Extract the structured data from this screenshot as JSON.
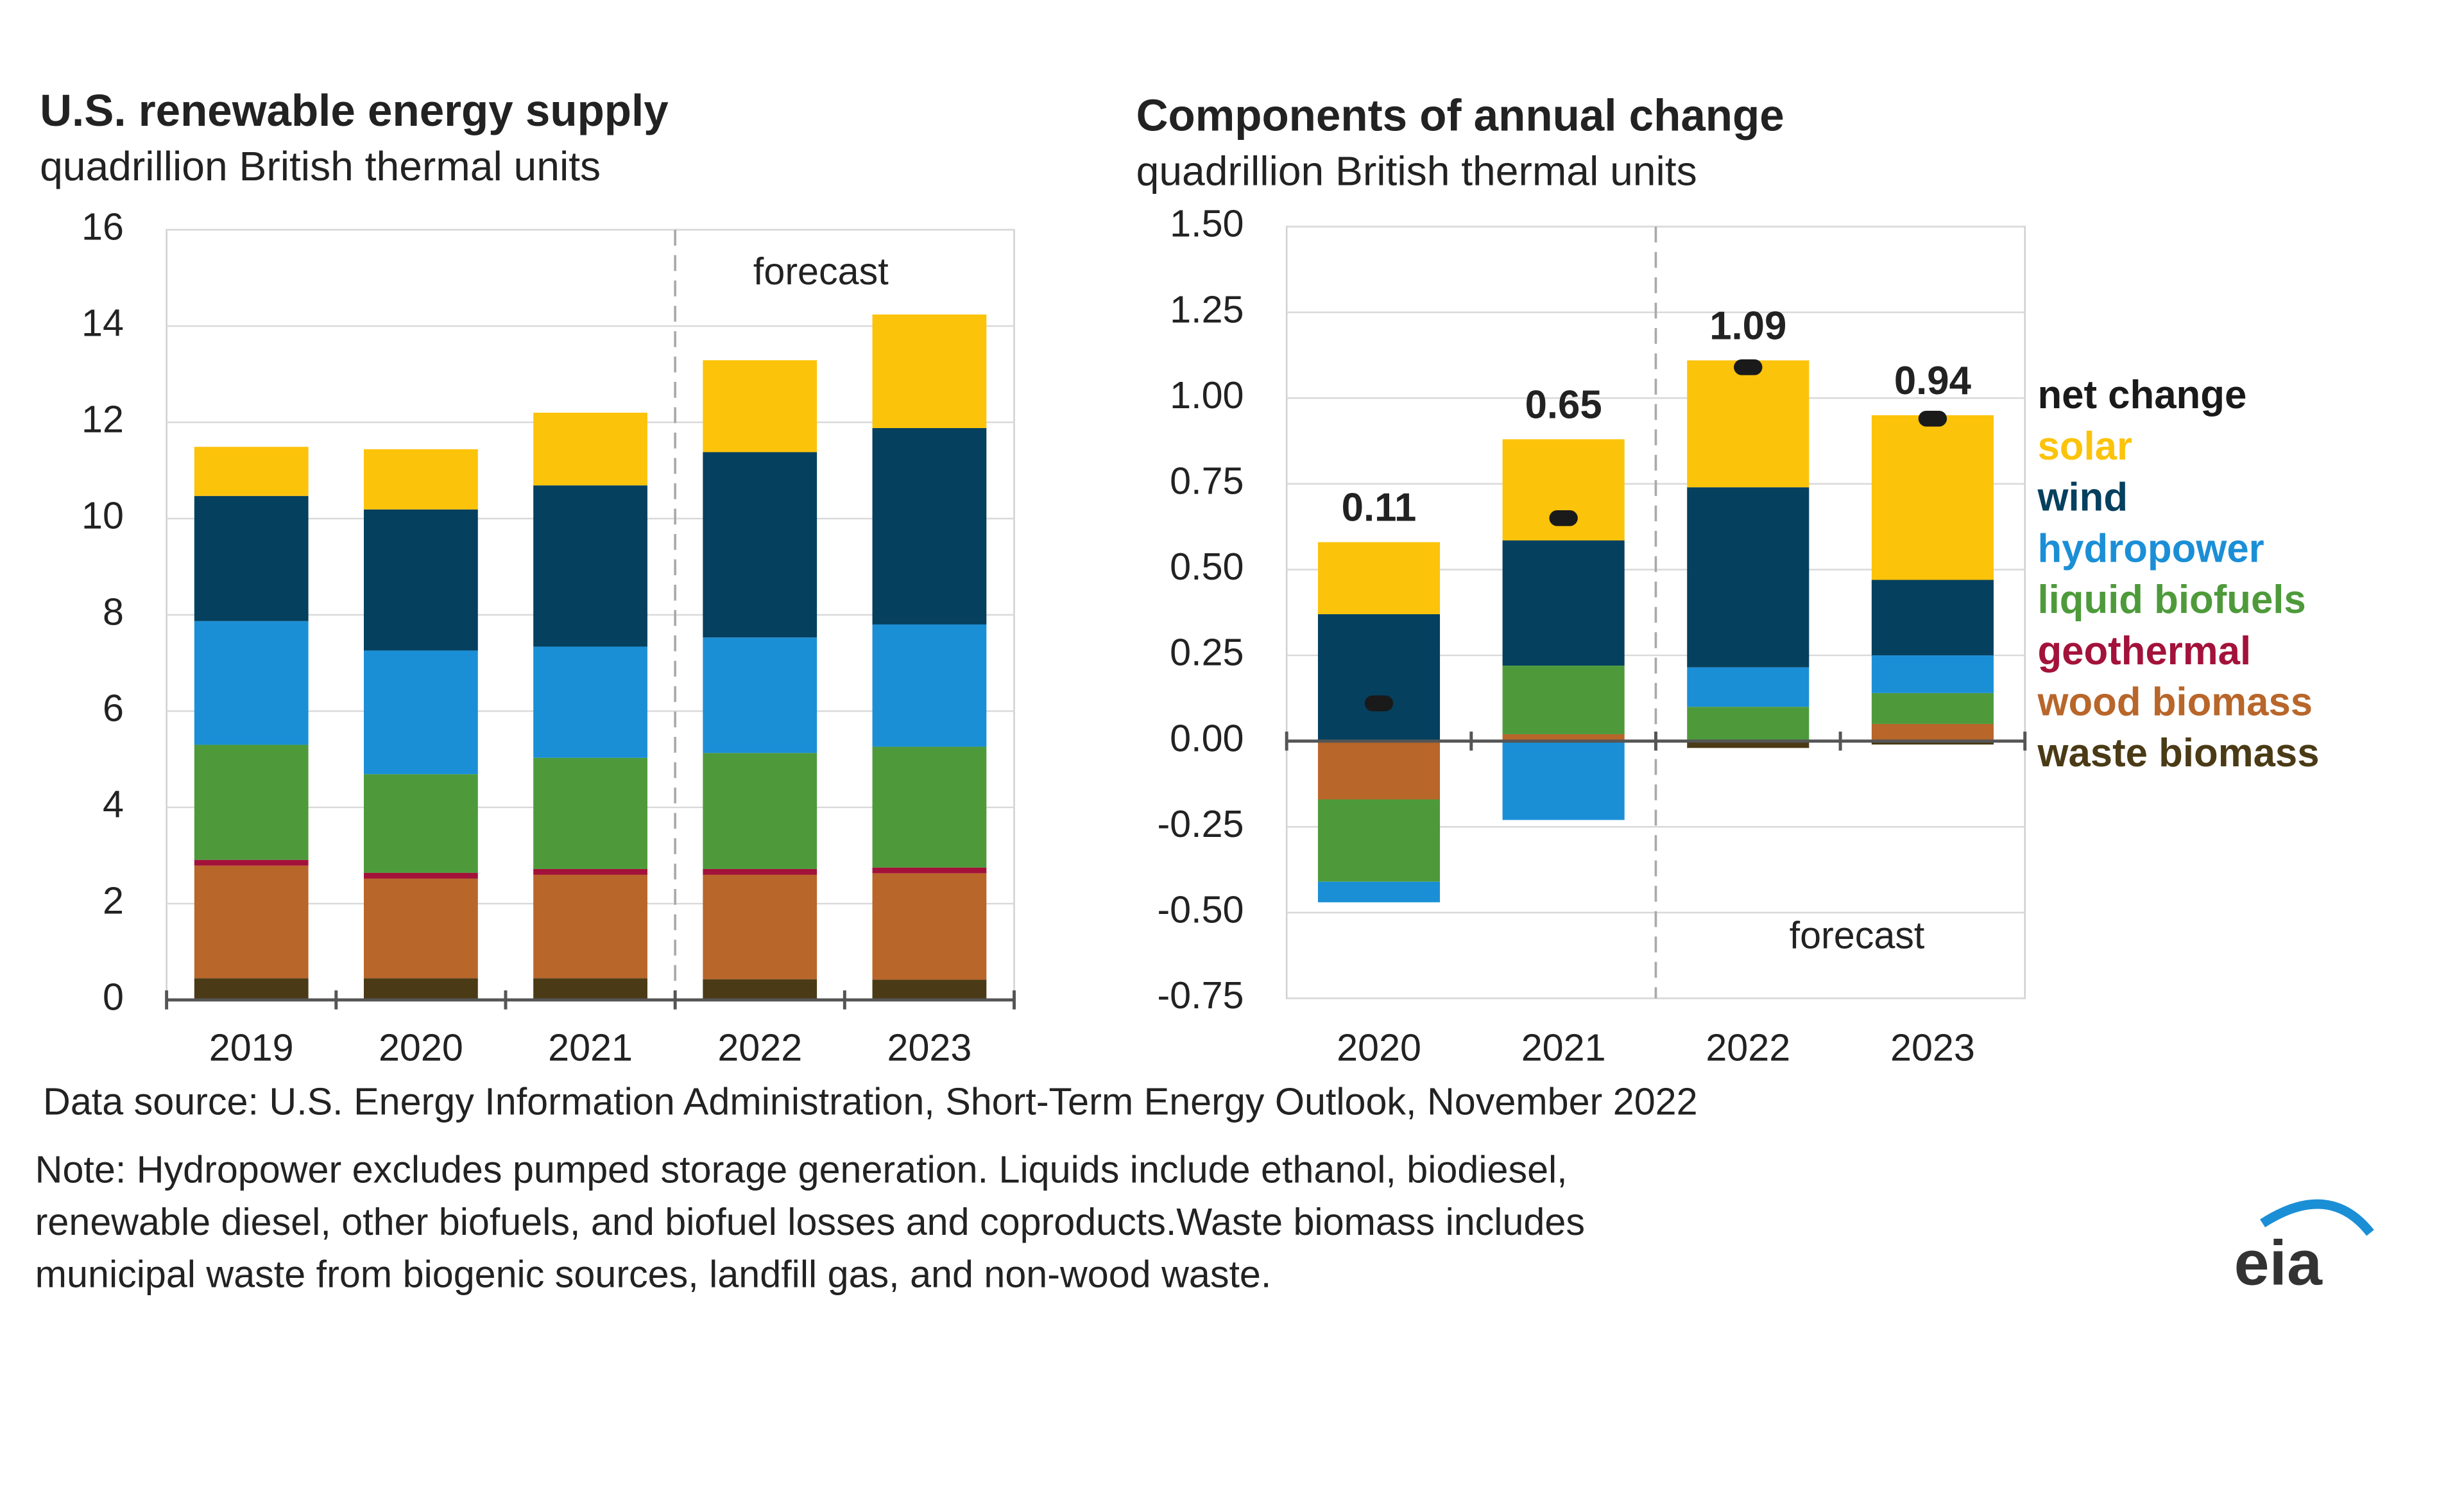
{
  "chart_data": [
    {
      "type": "bar",
      "stacked": true,
      "title": "U.S. renewable energy supply",
      "subtitle": "quadrillion British thermal units",
      "annotation": "forecast",
      "categories": [
        "2019",
        "2020",
        "2021",
        "2022",
        "2023"
      ],
      "series": [
        {
          "name": "waste biomass",
          "color": "#4a3b16",
          "values": [
            0.45,
            0.45,
            0.45,
            0.43,
            0.42
          ]
        },
        {
          "name": "wood biomass",
          "color": "#b8662a",
          "values": [
            2.34,
            2.07,
            2.15,
            2.17,
            2.21
          ]
        },
        {
          "name": "geothermal",
          "color": "#a3123a",
          "values": [
            0.12,
            0.12,
            0.12,
            0.12,
            0.12
          ]
        },
        {
          "name": "liquid biofuels",
          "color": "#4e9a3b",
          "values": [
            2.39,
            2.05,
            2.31,
            2.41,
            2.51
          ]
        },
        {
          "name": "hydropower",
          "color": "#1b8fd6",
          "values": [
            2.57,
            2.57,
            2.31,
            2.4,
            2.54
          ]
        },
        {
          "name": "wind",
          "color": "#05405f",
          "values": [
            2.6,
            2.93,
            3.35,
            3.85,
            4.08
          ]
        },
        {
          "name": "solar",
          "color": "#fcc30b",
          "values": [
            1.02,
            1.25,
            1.51,
            1.91,
            2.36
          ]
        }
      ],
      "ylim": [
        0,
        16
      ],
      "yticks": [
        0,
        2,
        4,
        6,
        8,
        10,
        12,
        14,
        16
      ],
      "grid": true
    },
    {
      "type": "bar",
      "stacked": true,
      "title": "Components of annual change",
      "subtitle": "quadrillion British thermal units",
      "annotation": "forecast",
      "categories": [
        "2020",
        "2021",
        "2022",
        "2023"
      ],
      "series": [
        {
          "name": "waste biomass",
          "color": "#4a3b16",
          "values": [
            0,
            0,
            -0.02,
            -0.01
          ]
        },
        {
          "name": "wood biomass",
          "color": "#b8662a",
          "values": [
            -0.17,
            0.02,
            0,
            0.05
          ]
        },
        {
          "name": "geothermal",
          "color": "#a3123a",
          "values": [
            0,
            0,
            0,
            0
          ]
        },
        {
          "name": "liquid biofuels",
          "color": "#4e9a3b",
          "values": [
            -0.24,
            0.2,
            0.1,
            0.09
          ]
        },
        {
          "name": "hydropower",
          "color": "#1b8fd6",
          "values": [
            -0.06,
            -0.23,
            0.115,
            0.11
          ]
        },
        {
          "name": "wind",
          "color": "#05405f",
          "values": [
            0.37,
            0.365,
            0.525,
            0.22
          ]
        },
        {
          "name": "solar",
          "color": "#fcc30b",
          "values": [
            0.21,
            0.295,
            0.37,
            0.48
          ]
        }
      ],
      "net_change": {
        "name": "net change",
        "color": "#1a1a1a",
        "values": [
          0.11,
          0.65,
          1.09,
          0.94
        ]
      },
      "ylim": [
        -0.75,
        1.5
      ],
      "yticks": [
        {
          "value": 1.5,
          "label": "1.50"
        },
        1.25,
        {
          "value": 1,
          "label": "1.00"
        },
        0.75,
        {
          "value": 0.5,
          "label": "0.50"
        },
        0.25,
        {
          "value": 0,
          "label": "0.00"
        },
        -0.25,
        {
          "value": -0.5,
          "label": "-0.50"
        },
        -0.75
      ],
      "grid": true,
      "legend": "right"
    }
  ],
  "footer": {
    "source": "Data source: U.S. Energy Information Administration, Short-Term Energy Outlook, November 2022",
    "note": [
      "Note: Hydropower excludes pumped storage generation. Liquids include ethanol, biodiesel,",
      "renewable diesel, other biofuels, and biofuel losses and coproducts.Waste biomass includes",
      "municipal waste from biogenic sources, landfill gas, and non-wood waste."
    ],
    "logo": "eia"
  }
}
